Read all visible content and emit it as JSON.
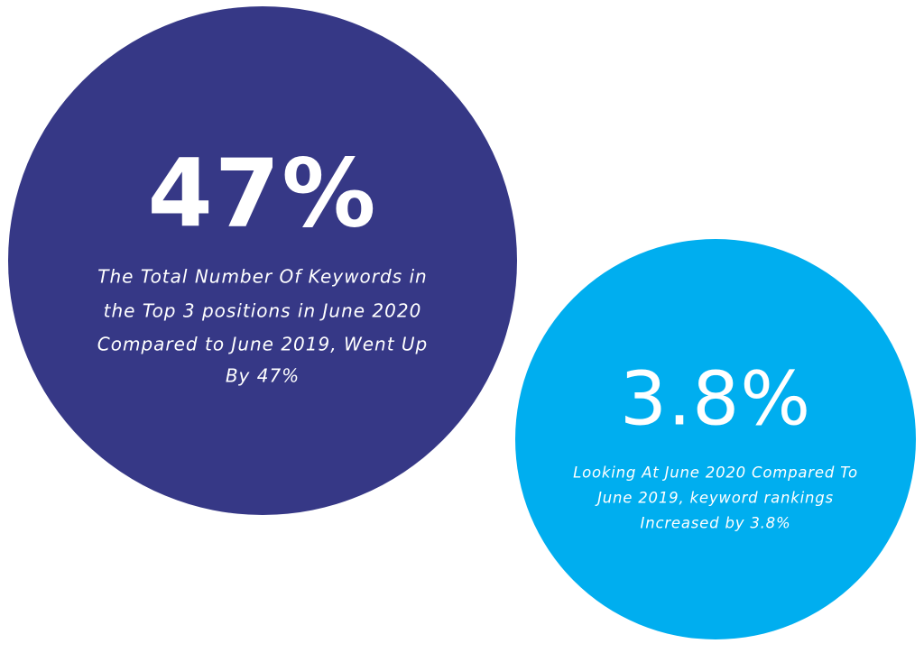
{
  "circles": [
    {
      "stat": "47%",
      "description": [
        "The Total Number Of Keywords in",
        "the Top 3 positions in June 2020",
        "Compared to June 2019, Went Up",
        "By 47%"
      ]
    },
    {
      "stat": "3.8%",
      "description": [
        "Looking At June 2020 Compared To",
        "June 2019, keyword rankings",
        "Increased by 3.8%"
      ]
    }
  ]
}
